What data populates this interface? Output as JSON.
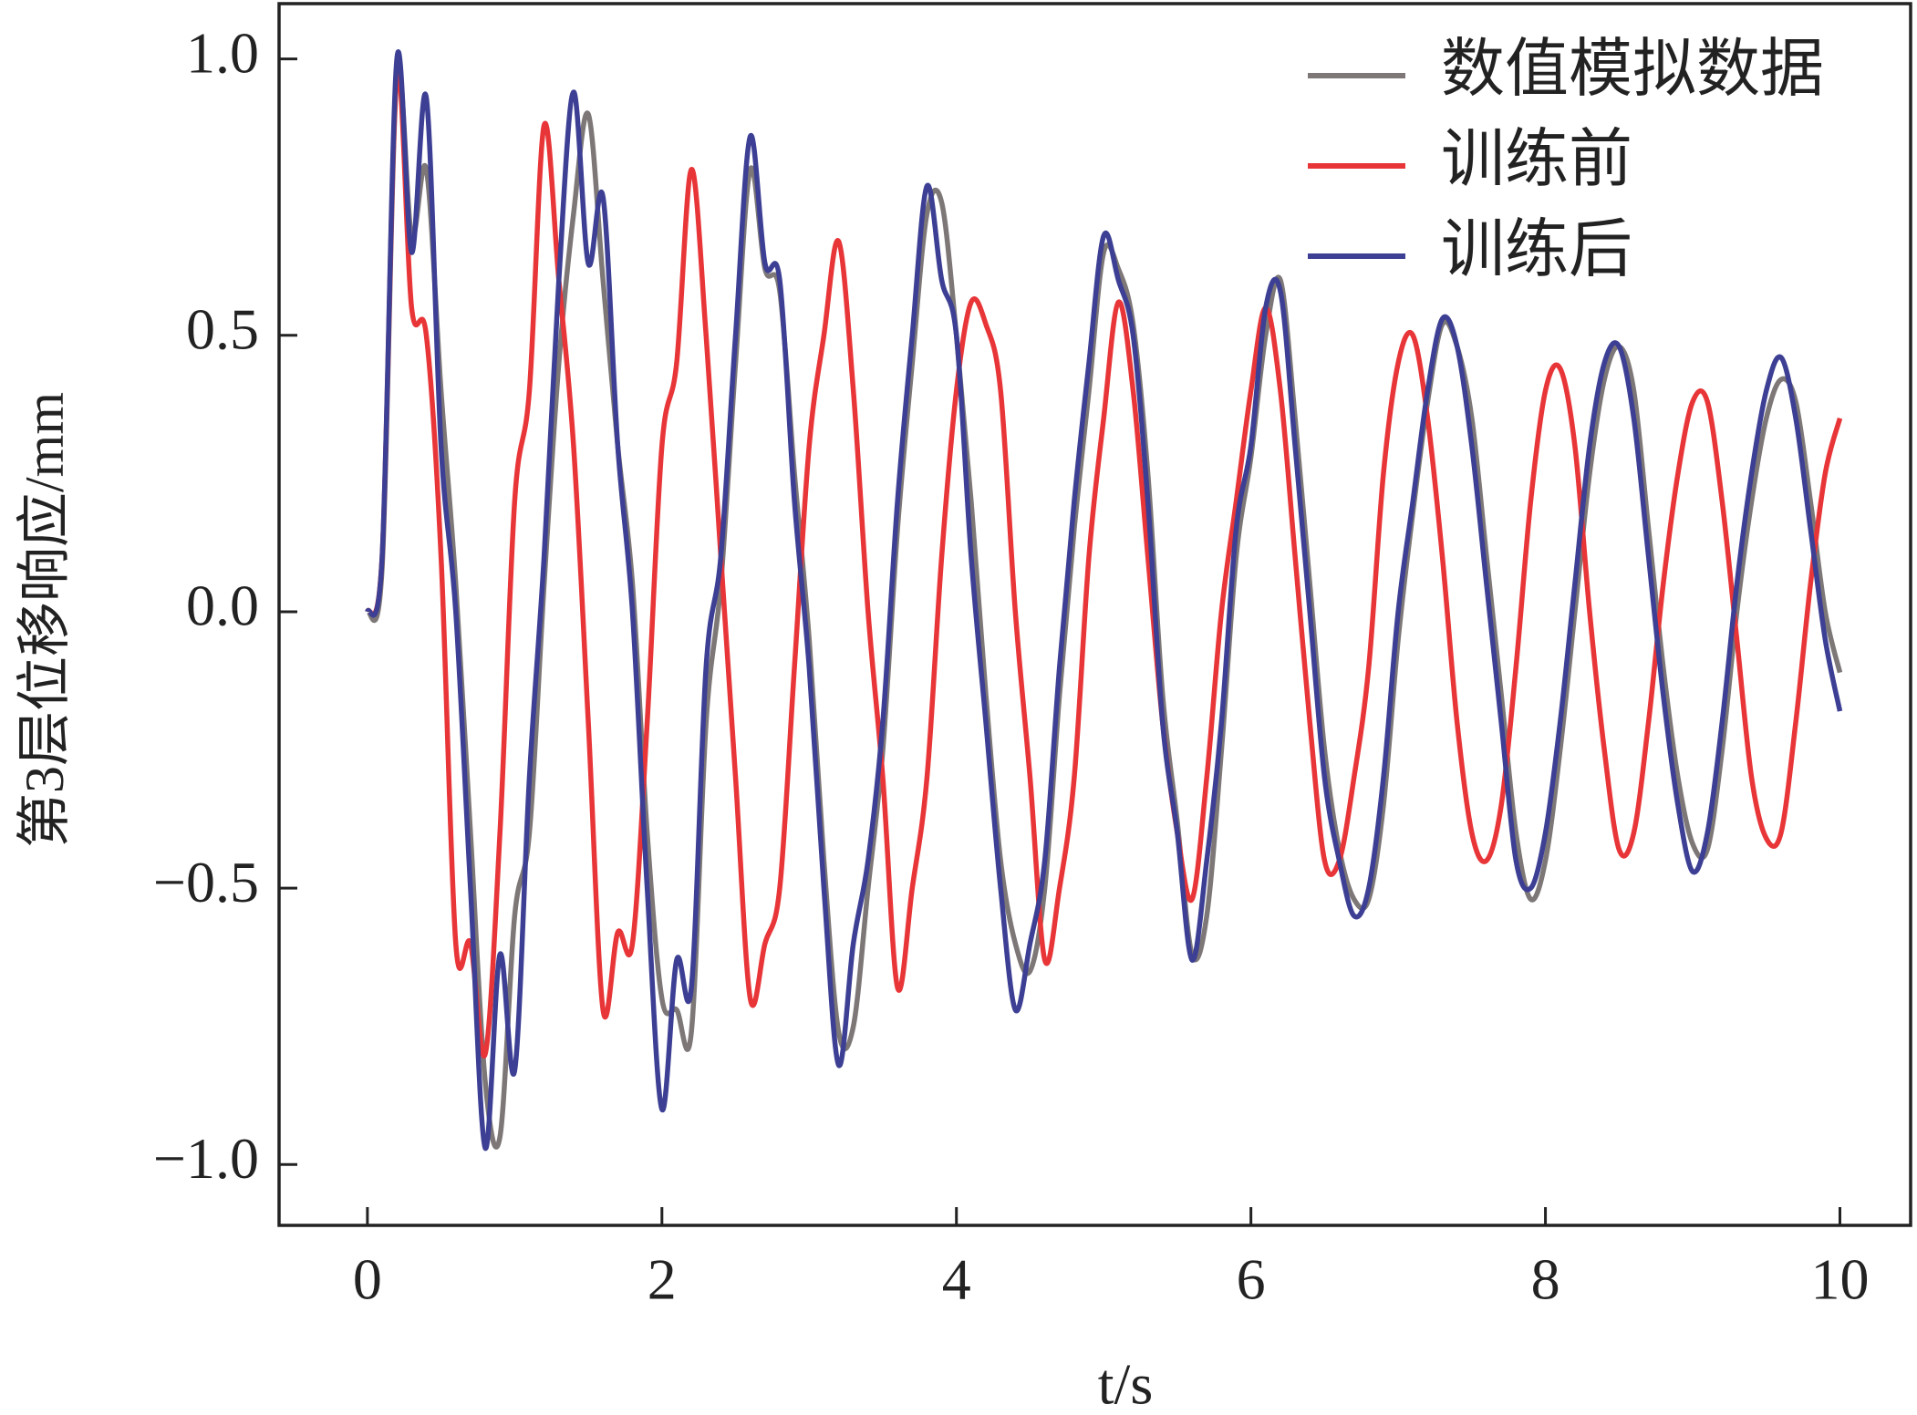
{
  "chart_data": {
    "type": "line",
    "x_label": "t/s",
    "y_label": "第3层位移响应/mm",
    "xlim": [
      -0.6,
      10.48
    ],
    "ylim": [
      -1.11,
      1.1
    ],
    "xticks": [
      0,
      2,
      4,
      6,
      8,
      10
    ],
    "yticks": [
      {
        "value": -1.0,
        "label": "−1.0"
      },
      {
        "value": -0.5,
        "label": "−0.5"
      },
      {
        "value": 0.0,
        "label": "0.0"
      },
      {
        "value": 0.5,
        "label": "0.5"
      },
      {
        "value": 1.0,
        "label": "1.0"
      }
    ],
    "legend": "upper right",
    "x": [
      0,
      0.1,
      0.2,
      0.3,
      0.4,
      0.5,
      0.6,
      0.7,
      0.8,
      0.9,
      1,
      1.1,
      1.2,
      1.3,
      1.4,
      1.5,
      1.6,
      1.7,
      1.8,
      1.9,
      2,
      2.1,
      2.2,
      2.3,
      2.4,
      2.5,
      2.6,
      2.7,
      2.8,
      2.9,
      3,
      3.1,
      3.2,
      3.3,
      3.4,
      3.5,
      3.6,
      3.7,
      3.8,
      3.9,
      4,
      4.1,
      4.2,
      4.3,
      4.4,
      4.5,
      4.6,
      4.7,
      4.8,
      4.9,
      5,
      5.1,
      5.2,
      5.3,
      5.4,
      5.5,
      5.6,
      5.7,
      5.8,
      5.9,
      6,
      6.1,
      6.2,
      6.3,
      6.4,
      6.5,
      6.6,
      6.7,
      6.8,
      6.9,
      7,
      7.1,
      7.2,
      7.3,
      7.4,
      7.5,
      7.6,
      7.7,
      7.8,
      7.9,
      8,
      8.1,
      8.2,
      8.3,
      8.4,
      8.5,
      8.6,
      8.7,
      8.8,
      8.9,
      9,
      9.1,
      9.2,
      9.3,
      9.4,
      9.5,
      9.6,
      9.7,
      9.8,
      9.9,
      10
    ],
    "series": [
      {
        "name": "数值模拟数据",
        "color": "#7d7777",
        "values": [
          0,
          0.08,
          0.97,
          0.68,
          0.8,
          0.4,
          0.05,
          -0.4,
          -0.85,
          -0.95,
          -0.55,
          -0.4,
          0.05,
          0.45,
          0.72,
          0.9,
          0.6,
          0.3,
          0.05,
          -0.4,
          -0.7,
          -0.72,
          -0.76,
          -0.2,
          0.05,
          0.45,
          0.8,
          0.62,
          0.58,
          0.25,
          -0.05,
          -0.45,
          -0.76,
          -0.75,
          -0.5,
          -0.25,
          0.15,
          0.45,
          0.72,
          0.74,
          0.5,
          0.2,
          -0.15,
          -0.45,
          -0.6,
          -0.65,
          -0.5,
          -0.15,
          0.15,
          0.4,
          0.65,
          0.62,
          0.52,
          0.25,
          -0.15,
          -0.38,
          -0.62,
          -0.55,
          -0.25,
          0.1,
          0.28,
          0.5,
          0.6,
          0.35,
          0.05,
          -0.25,
          -0.43,
          -0.52,
          -0.52,
          -0.35,
          -0.05,
          0.18,
          0.38,
          0.52,
          0.48,
          0.35,
          0.1,
          -0.15,
          -0.4,
          -0.52,
          -0.45,
          -0.25,
          0.0,
          0.25,
          0.42,
          0.48,
          0.4,
          0.15,
          -0.1,
          -0.3,
          -0.42,
          -0.43,
          -0.25,
          0.0,
          0.2,
          0.35,
          0.42,
          0.38,
          0.2,
          0.0,
          -0.11
        ]
      },
      {
        "name": "训练前",
        "color": "#e83538",
        "values": [
          0,
          0.1,
          0.97,
          0.55,
          0.5,
          0.1,
          -0.6,
          -0.6,
          -0.8,
          -0.4,
          0.2,
          0.4,
          0.88,
          0.6,
          0.3,
          -0.2,
          -0.72,
          -0.58,
          -0.6,
          -0.2,
          0.3,
          0.45,
          0.8,
          0.5,
          0.1,
          -0.3,
          -0.7,
          -0.6,
          -0.5,
          -0.1,
          0.3,
          0.5,
          0.67,
          0.4,
          0.0,
          -0.3,
          -0.68,
          -0.5,
          -0.3,
          0.1,
          0.4,
          0.56,
          0.52,
          0.4,
          0.0,
          -0.3,
          -0.63,
          -0.5,
          -0.3,
          0.1,
          0.35,
          0.56,
          0.4,
          0.1,
          -0.2,
          -0.4,
          -0.52,
          -0.3,
          0.0,
          0.2,
          0.4,
          0.55,
          0.4,
          0.1,
          -0.2,
          -0.45,
          -0.45,
          -0.3,
          -0.1,
          0.25,
          0.45,
          0.5,
          0.35,
          0.1,
          -0.2,
          -0.4,
          -0.45,
          -0.35,
          -0.1,
          0.2,
          0.4,
          0.44,
          0.3,
          0.0,
          -0.25,
          -0.43,
          -0.4,
          -0.2,
          0.05,
          0.25,
          0.38,
          0.38,
          0.2,
          -0.05,
          -0.3,
          -0.41,
          -0.4,
          -0.2,
          0.05,
          0.25,
          0.35
        ]
      },
      {
        "name": "训练后",
        "color": "#3c3f93",
        "values": [
          0,
          0.1,
          1.0,
          0.65,
          0.93,
          0.3,
          0.0,
          -0.5,
          -0.97,
          -0.62,
          -0.83,
          -0.3,
          0.1,
          0.6,
          0.94,
          0.63,
          0.75,
          0.3,
          0.0,
          -0.5,
          -0.9,
          -0.63,
          -0.68,
          -0.1,
          0.1,
          0.5,
          0.86,
          0.63,
          0.6,
          0.2,
          -0.1,
          -0.5,
          -0.82,
          -0.6,
          -0.45,
          -0.2,
          0.2,
          0.5,
          0.77,
          0.6,
          0.5,
          0.1,
          -0.2,
          -0.5,
          -0.72,
          -0.6,
          -0.45,
          -0.1,
          0.2,
          0.45,
          0.68,
          0.6,
          0.5,
          0.2,
          -0.2,
          -0.4,
          -0.63,
          -0.45,
          -0.2,
          0.15,
          0.3,
          0.55,
          0.58,
          0.3,
          0.0,
          -0.3,
          -0.45,
          -0.55,
          -0.5,
          -0.3,
          0.0,
          0.2,
          0.4,
          0.53,
          0.48,
          0.3,
          0.05,
          -0.2,
          -0.45,
          -0.5,
          -0.4,
          -0.2,
          0.05,
          0.3,
          0.45,
          0.48,
          0.35,
          0.1,
          -0.15,
          -0.35,
          -0.47,
          -0.4,
          -0.2,
          0.05,
          0.25,
          0.4,
          0.46,
          0.35,
          0.15,
          -0.05,
          -0.18
        ]
      }
    ]
  }
}
